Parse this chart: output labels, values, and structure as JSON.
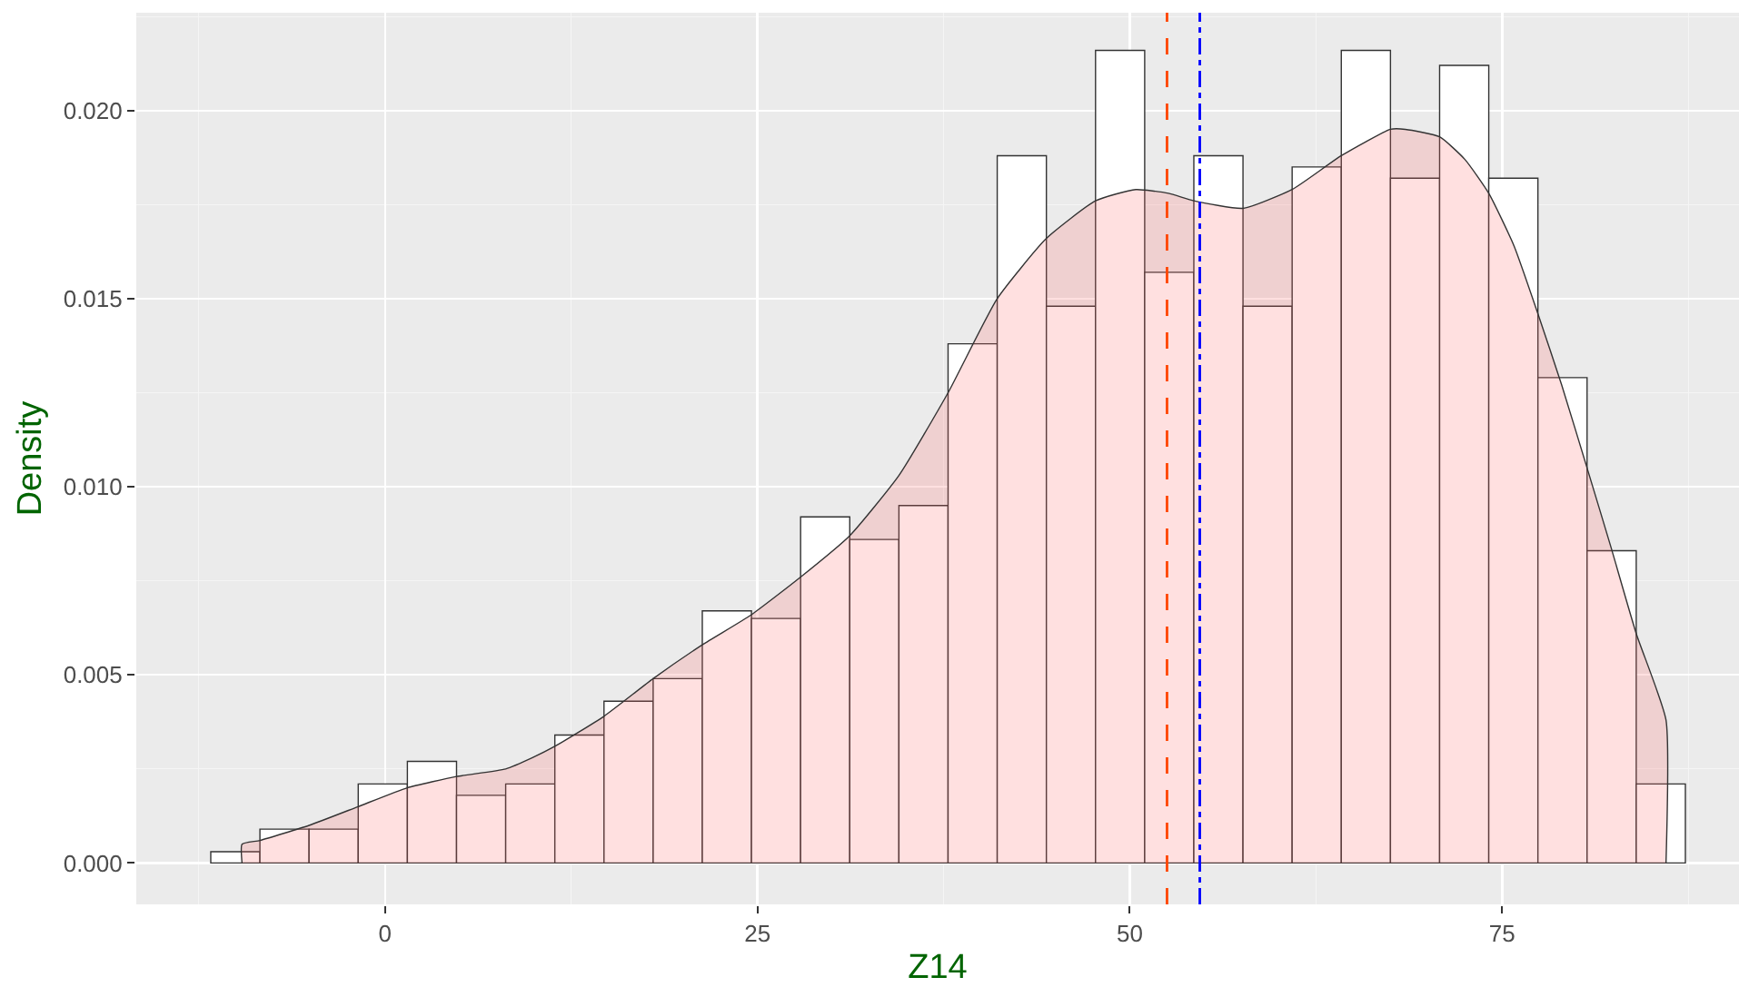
{
  "chart_data": {
    "type": "histogram",
    "xlabel": "Z14",
    "ylabel": "Density",
    "bins": [
      -11.7,
      -8.4,
      -5.1,
      -1.8,
      1.5,
      4.8,
      8.1,
      11.4,
      14.7,
      18.0,
      21.3,
      24.6,
      27.9,
      31.2,
      34.5,
      37.8,
      41.1,
      44.4,
      47.7,
      51.0,
      54.3,
      57.6,
      60.9,
      64.2,
      67.5,
      70.8,
      74.1,
      77.4,
      80.7,
      84.0,
      87.3
    ],
    "series": [
      {
        "color": "#ffffff",
        "values": [
          0.0003,
          0.0009,
          0.0009,
          0.0021,
          0.0027,
          0.0018,
          0.0021,
          0.0034,
          0.0043,
          0.0049,
          0.0067,
          0.0065,
          0.0092,
          0.0086,
          0.0095,
          0.0138,
          0.0188,
          0.0148,
          0.0216,
          0.0157,
          0.0188,
          0.0148,
          0.0185,
          0.0216,
          0.0182,
          0.0212,
          0.0182,
          0.0129,
          0.0083,
          0.0021
        ]
      },
      {
        "type": "area",
        "color": "#ff6666",
        "x": [
          -9.6,
          -9.6,
          -8.4,
          -5.1,
          -1.8,
          1.5,
          4.8,
          8.1,
          9.9,
          11.4,
          14.7,
          18.0,
          21.3,
          24.6,
          27.9,
          31.2,
          34.5,
          37.8,
          41.1,
          44.4,
          47.7,
          50.4,
          52.6,
          54.3,
          57.6,
          60.9,
          64.2,
          67.5,
          68.5,
          70.8,
          72.5,
          74.1,
          75.8,
          77.4,
          79.0,
          80.7,
          82.3,
          84.0,
          86.0,
          86.0
        ],
        "values": [
          0,
          0.0005,
          0.0006,
          0.001,
          0.0015,
          0.002,
          0.0023,
          0.0025,
          0.0028,
          0.0031,
          0.0039,
          0.0049,
          0.0058,
          0.0066,
          0.0076,
          0.0087,
          0.0103,
          0.0125,
          0.015,
          0.0166,
          0.0176,
          0.0179,
          0.0178,
          0.0176,
          0.0174,
          0.0179,
          0.0188,
          0.0195,
          0.0195,
          0.0193,
          0.0187,
          0.0178,
          0.0164,
          0.0146,
          0.0127,
          0.0105,
          0.0084,
          0.0061,
          0.0038,
          0
        ]
      }
    ],
    "xlim": [
      -16.7,
      90.9
    ],
    "xticks": [
      0,
      25,
      50,
      75
    ],
    "ylim": [
      -0.0011,
      0.0226
    ],
    "yticks": [
      {
        "value": 0,
        "label": "0.000"
      },
      {
        "value": 0.005,
        "label": "0.005"
      },
      {
        "value": 0.01,
        "label": "0.010"
      },
      {
        "value": 0.015,
        "label": "0.015"
      },
      {
        "value": 0.02,
        "label": "0.020"
      }
    ],
    "grid": true,
    "ref_lines": [
      {
        "axis": "x",
        "value": 52.5,
        "color": "#ff4500",
        "line_style": "dashed"
      },
      {
        "axis": "x",
        "value": 54.7,
        "color": "#0000ff",
        "line_style": "dashdot"
      }
    ]
  }
}
